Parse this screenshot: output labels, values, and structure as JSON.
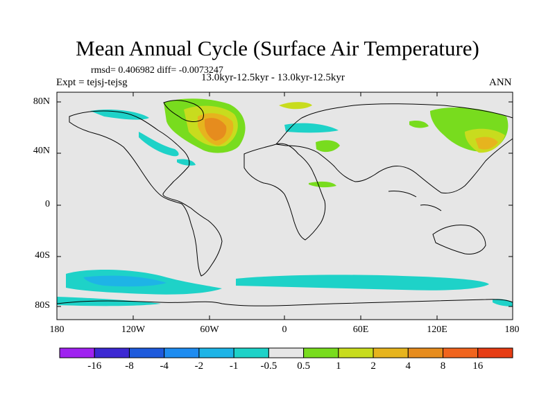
{
  "title": "Mean Annual Cycle (Surface Air Temperature)",
  "stats_text": "rmsd= 0.406982 diff= -0.0073247",
  "expt_text": "Expt = tejsj-tejsg",
  "period_text": "13.0kyr-12.5kyr - 13.0kyr-12.5kyr",
  "season_text": "ANN",
  "lat_labels": [
    "80N",
    "40N",
    "0",
    "40S",
    "80S"
  ],
  "lon_labels": [
    "180",
    "120W",
    "60W",
    "0",
    "60E",
    "120E",
    "180"
  ],
  "colorbar": {
    "labels": [
      "-16",
      "-8",
      "-4",
      "-2",
      "-1",
      "-0.5",
      "0.5",
      "1",
      "2",
      "4",
      "8",
      "16"
    ],
    "colors": [
      "#9f22f0",
      "#3c28d2",
      "#1e5adc",
      "#1e8cf0",
      "#1eb4e6",
      "#1ed2c8",
      "#e6e6e6",
      "#78dc1e",
      "#c8dc1e",
      "#e6b41e",
      "#e68c1e",
      "#f0641e",
      "#e63c14"
    ]
  },
  "map_colors": {
    "background": "#e6e6e6",
    "coast": "#000000"
  }
}
